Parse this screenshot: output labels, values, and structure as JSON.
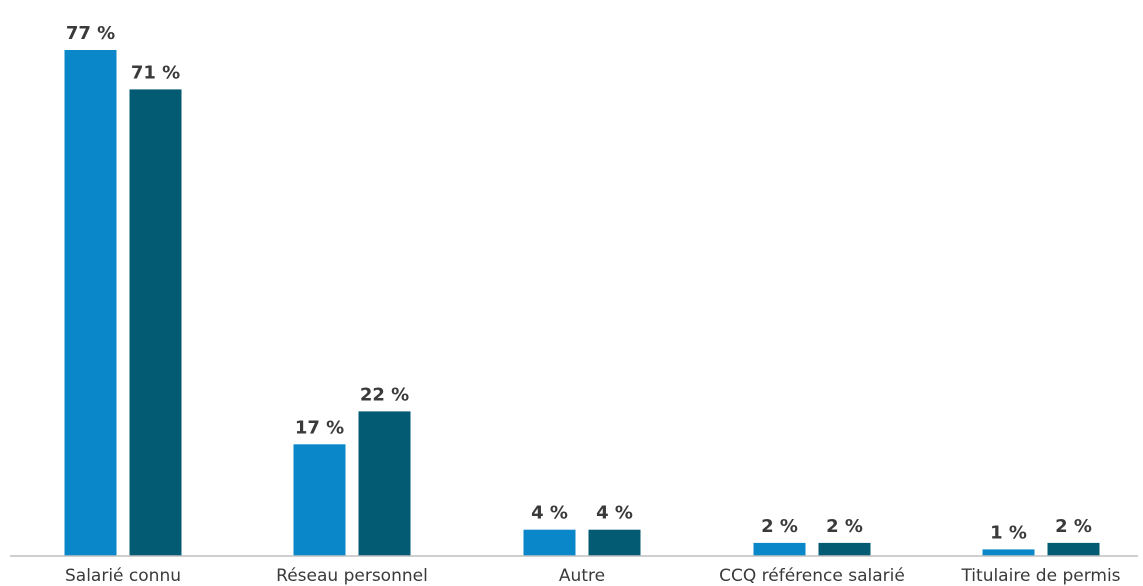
{
  "chart_data": {
    "type": "bar",
    "categories": [
      "Salarié connu",
      "Réseau personnel",
      "Autre",
      "CCQ référence salarié",
      "Titulaire de permis"
    ],
    "series": [
      {
        "values": [
          77,
          17,
          4,
          2,
          1
        ],
        "labels": [
          "77 %",
          "17 %",
          "4 %",
          "2 %",
          "1 %"
        ],
        "color": "#0a87c9"
      },
      {
        "values": [
          71,
          22,
          4,
          2,
          2
        ],
        "labels": [
          "71 %",
          "22 %",
          "4 %",
          "2 %",
          "2 %"
        ],
        "color": "#035b73"
      }
    ],
    "ylim": [
      0,
      77
    ],
    "grid": false,
    "legend": "none",
    "axis_color": "#bfbfbf"
  }
}
